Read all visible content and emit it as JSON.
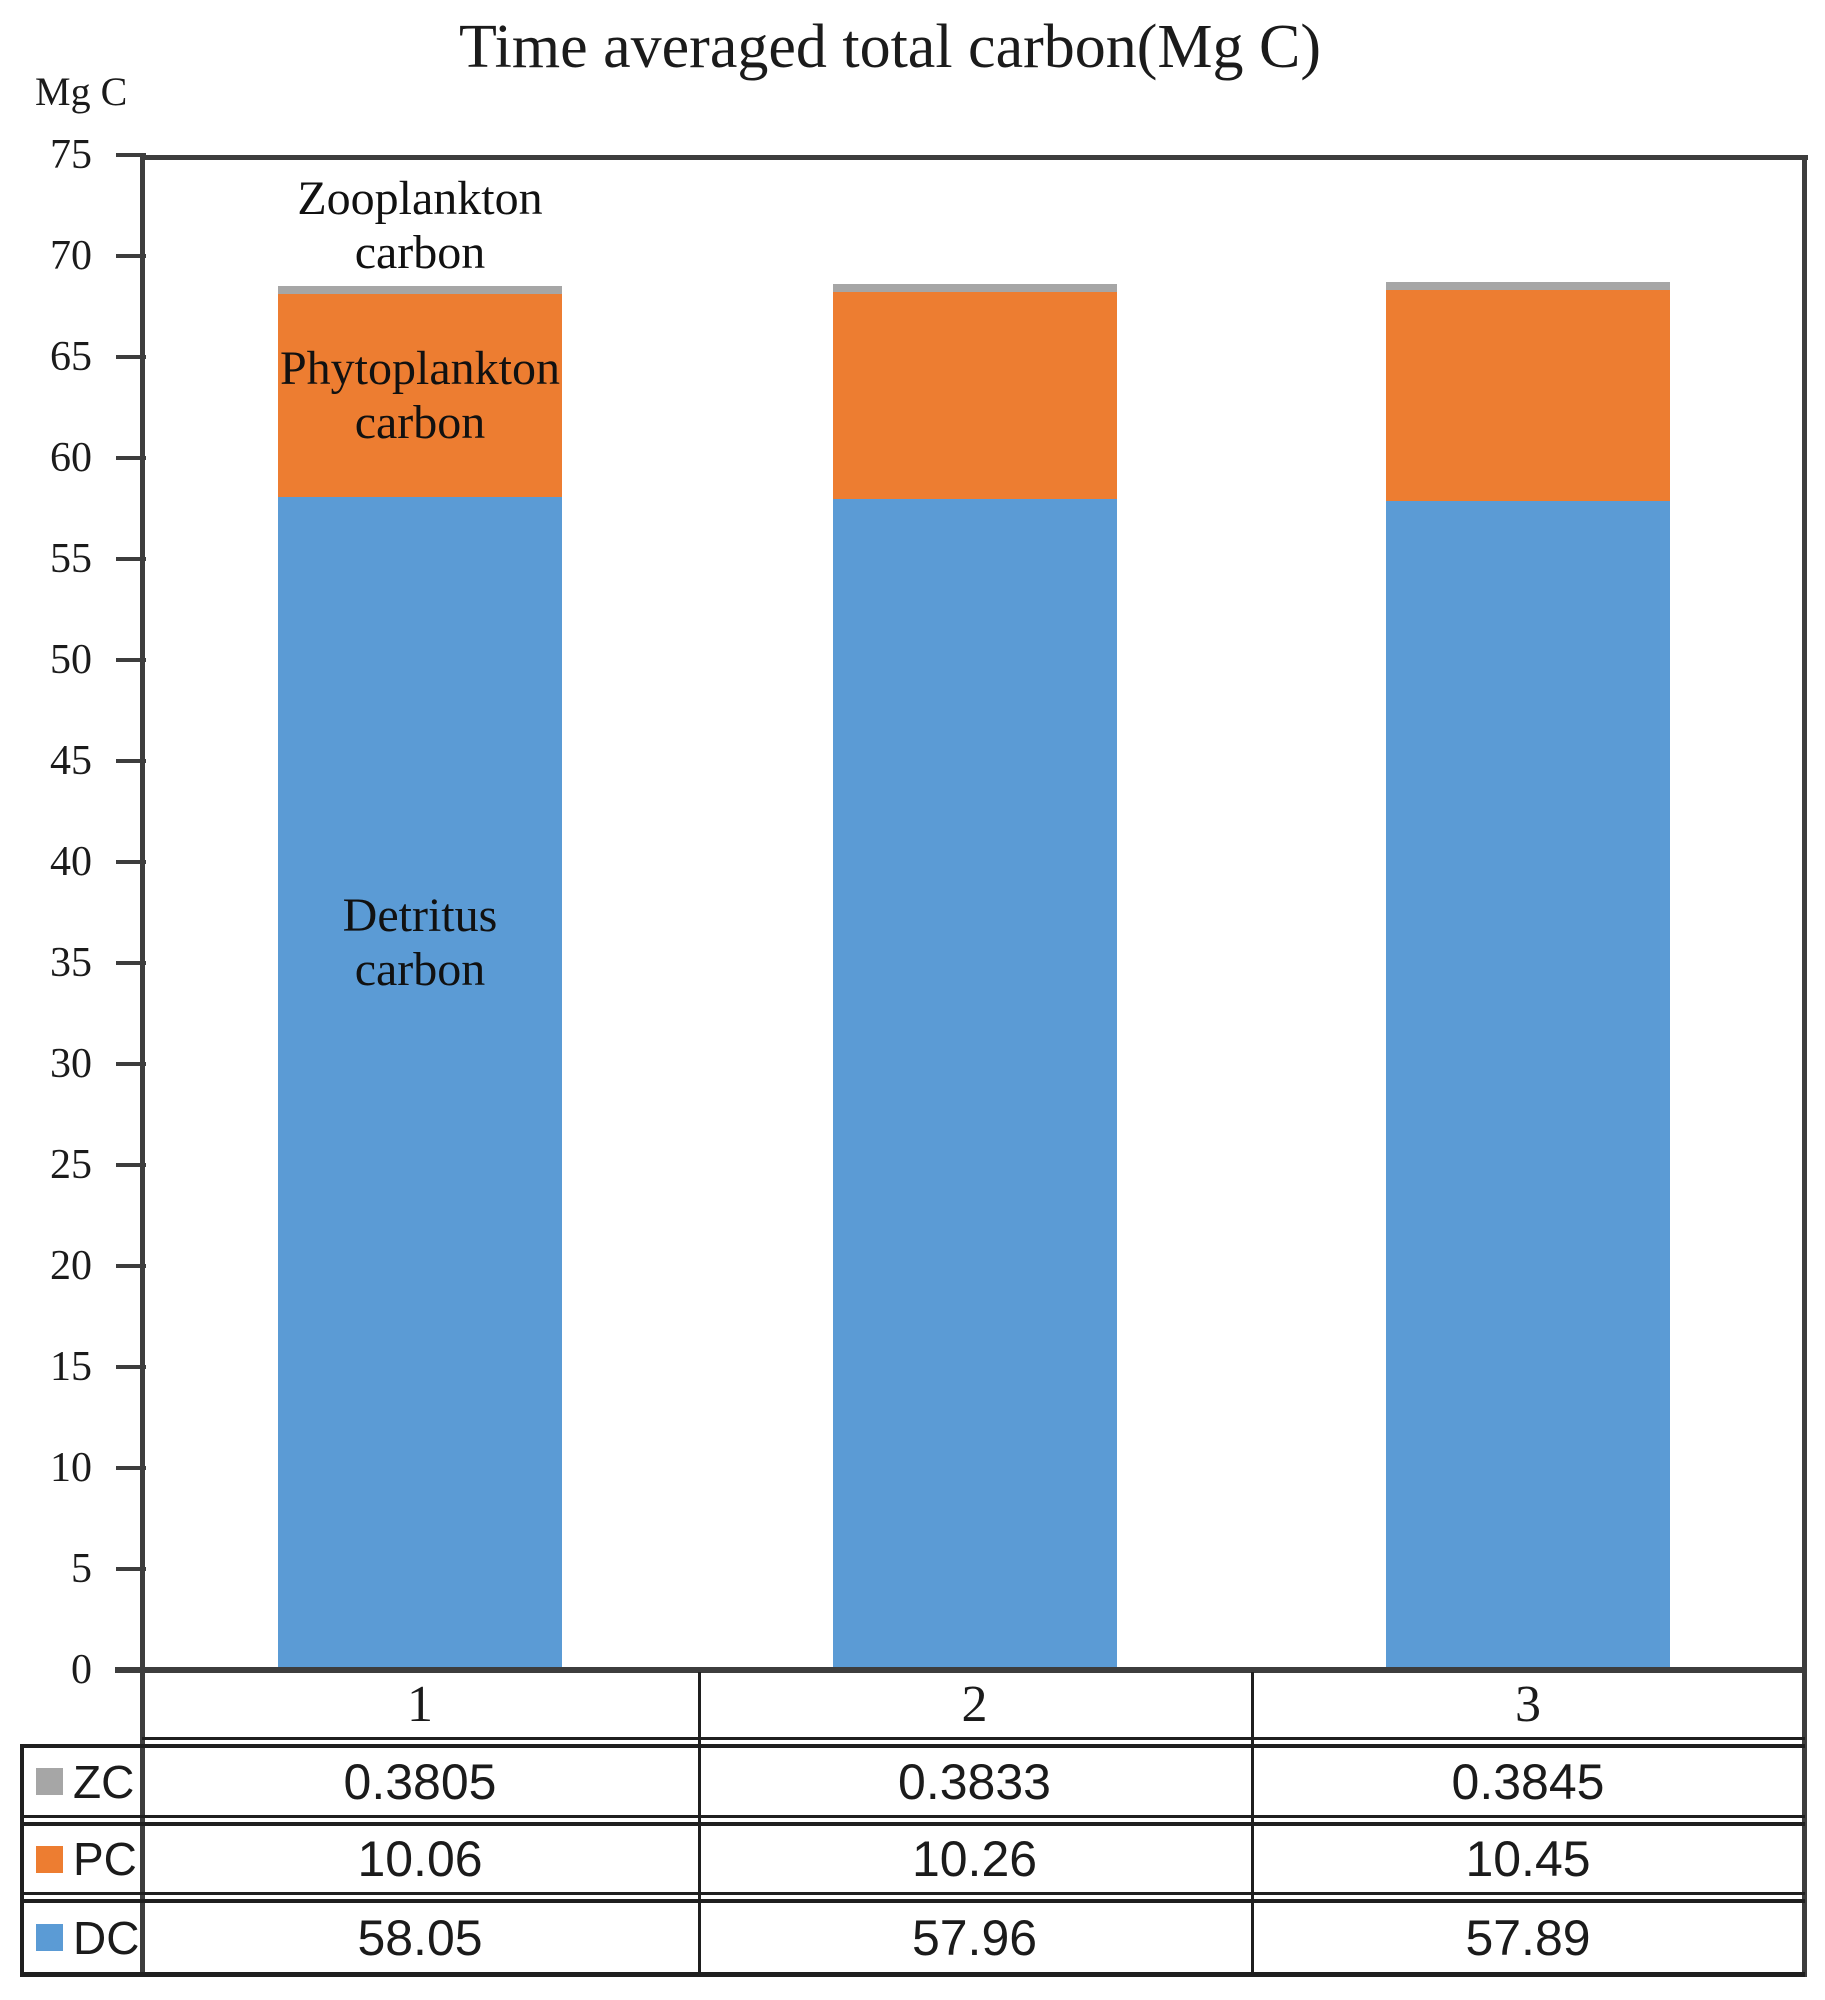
{
  "title": "Time averaged total carbon(Mg C)",
  "y_axis": {
    "unit_label": "Mg C",
    "min": 0,
    "max": 75,
    "step": 5
  },
  "chart_data": {
    "type": "bar",
    "stacked": true,
    "title": "Time averaged total carbon(Mg C)",
    "ylabel": "Mg C",
    "ylim": [
      0,
      75
    ],
    "ytick_step": 5,
    "grid": false,
    "legend_position": "table-left-keys",
    "categories": [
      "1",
      "2",
      "3"
    ],
    "series": [
      {
        "key": "DC",
        "name": "Detritus carbon",
        "color": "#5B9BD5",
        "values": [
          58.05,
          57.96,
          57.89
        ],
        "annotation": "Detritus\ncarbon"
      },
      {
        "key": "PC",
        "name": "Phytoplankton carbon",
        "color": "#ED7D31",
        "values": [
          10.06,
          10.26,
          10.45
        ],
        "annotation": "Phytoplankton\ncarbon"
      },
      {
        "key": "ZC",
        "name": "Zooplankton carbon",
        "color": "#A6A6A6",
        "values": [
          0.3805,
          0.3833,
          0.3845
        ],
        "annotation": "Zooplankton\ncarbon"
      }
    ]
  },
  "data_table": {
    "header": [
      "1",
      "2",
      "3"
    ],
    "rows": [
      {
        "key": "ZC",
        "swatch_color": "#A6A6A6",
        "values": [
          "0.3805",
          "0.3833",
          "0.3845"
        ]
      },
      {
        "key": "PC",
        "swatch_color": "#ED7D31",
        "values": [
          "10.06",
          "10.26",
          "10.45"
        ]
      },
      {
        "key": "DC",
        "swatch_color": "#5B9BD5",
        "values": [
          "58.05",
          "57.96",
          "57.89"
        ]
      }
    ]
  }
}
